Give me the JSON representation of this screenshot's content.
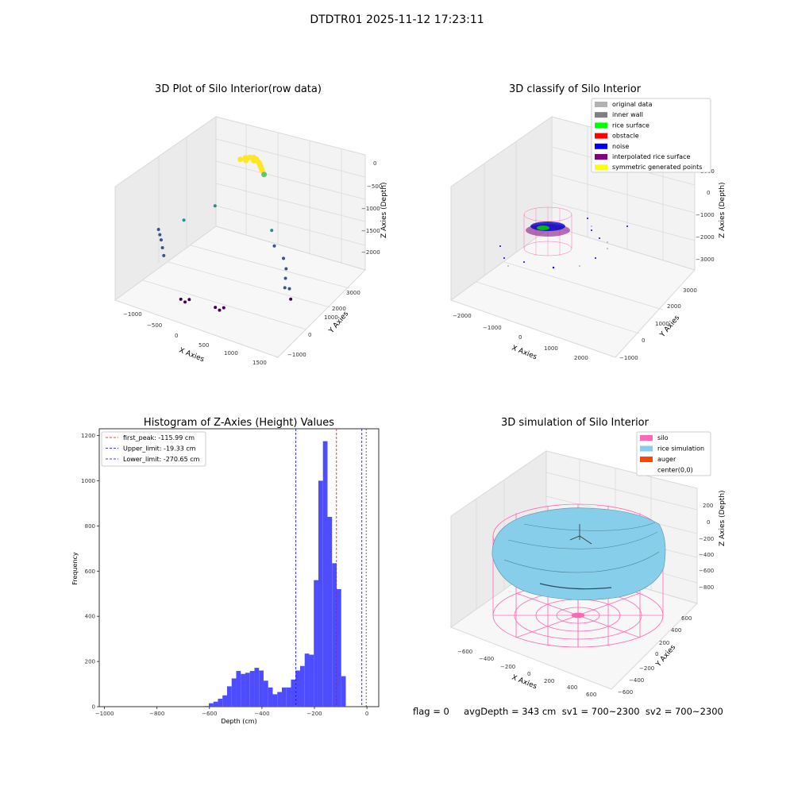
{
  "suptitle": "DTDTR01 2025-11-12 17:23:11",
  "status_line": "flag = 0     avgDepth = 343 cm  sv1 = 700~2300  sv2 = 700~2300",
  "chart_data": [
    {
      "type": "scatter",
      "title": "3D Plot of Silo Interior(row data)",
      "xlabel": "X Axies",
      "ylabel": "Y Axies",
      "zlabel": "Z Axies (Depth)",
      "xticks": [
        "−1000",
        "−500",
        "0",
        "500",
        "1000",
        "1500"
      ],
      "yticks": [
        "−1000",
        "0",
        "1000",
        "2000",
        "3000"
      ],
      "zticks": [
        "0",
        "−500",
        "−1000",
        "−1500",
        "−2000"
      ],
      "xlim": [
        -1000,
        1500
      ],
      "ylim": [
        -1000,
        3500
      ],
      "zlim": [
        -2300,
        0
      ],
      "colormap": [
        "#440154",
        "#3b528b",
        "#21918c",
        "#5ec962",
        "#fde725"
      ],
      "clusters": [
        {
          "label": "rice surface arc",
          "x": [
            -150,
            -100,
            -50,
            0,
            50,
            100,
            150,
            200,
            250,
            -80,
            20,
            120,
            180
          ],
          "y": [
            2600,
            2700,
            2750,
            2780,
            2760,
            2700,
            2620,
            2550,
            2480,
            2650,
            2720,
            2690,
            2580
          ],
          "z": [
            -400,
            -380,
            -370,
            -360,
            -370,
            -390,
            -420,
            -460,
            -500,
            -410,
            -400,
            -410,
            -450
          ]
        },
        {
          "label": "wall points",
          "x": [
            -900,
            -850,
            -800,
            -750,
            -700,
            -600,
            -300,
            600,
            700,
            900,
            1000,
            1050,
            1100,
            1200,
            1250
          ],
          "y": [
            900,
            800,
            700,
            600,
            500,
            1200,
            1800,
            1700,
            1500,
            1300,
            1100,
            900,
            700,
            600,
            500
          ],
          "z": [
            -1500,
            -1550,
            -1600,
            -1700,
            -1800,
            -1300,
            -1100,
            -1200,
            -1400,
            -1500,
            -1600,
            -1700,
            -1800,
            -1750,
            -1900
          ]
        },
        {
          "label": "bottom points",
          "x": [
            -200,
            -150,
            -100,
            300,
            350,
            400
          ],
          "y": [
            -300,
            -250,
            -200,
            -200,
            -150,
            -100
          ],
          "z": [
            -2200,
            -2250,
            -2200,
            -2200,
            -2250,
            -2200
          ]
        }
      ]
    },
    {
      "type": "scatter",
      "title": "3D classify of Silo Interior",
      "xlabel": "X Axies",
      "ylabel": "Y Axies",
      "zlabel": "Z Axies (Depth)",
      "xticks": [
        "−2000",
        "−1000",
        "0",
        "1000",
        "2000"
      ],
      "yticks": [
        "−1000",
        "0",
        "1000",
        "2000",
        "3000"
      ],
      "zticks": [
        "1000",
        "0",
        "−1000",
        "−2000",
        "−3000"
      ],
      "xlim": [
        -2500,
        2500
      ],
      "ylim": [
        -1000,
        3500
      ],
      "zlim": [
        -3300,
        1000
      ],
      "legend_position": "top-right",
      "legend": [
        {
          "label": "original data",
          "color": "#b3b3b3"
        },
        {
          "label": "inner wall",
          "color": "#808080"
        },
        {
          "label": "rice surface",
          "color": "#00ff00"
        },
        {
          "label": "obstacle",
          "color": "#ff0000"
        },
        {
          "label": "noise",
          "color": "#0000ff"
        },
        {
          "label": "interpolated rice surface",
          "color": "#800080"
        },
        {
          "label": "symmetric generated points",
          "color": "#ffff00"
        }
      ]
    },
    {
      "type": "bar",
      "title": "Histogram of Z-Axies (Height) Values",
      "xlabel": "Depth (cm)",
      "ylabel": "Frequency",
      "xlim": [
        -1020,
        45
      ],
      "ylim": [
        0,
        1230
      ],
      "xticks": [
        -1000,
        -800,
        -600,
        -400,
        -200,
        0
      ],
      "xtick_labels": [
        "−1000",
        "−800",
        "−600",
        "−400",
        "−200",
        "0"
      ],
      "yticks": [
        0,
        200,
        400,
        600,
        800,
        1000,
        1200
      ],
      "ytick_labels": [
        "0",
        "200",
        "400",
        "600",
        "800",
        "1000",
        "1200"
      ],
      "bar_color": "#4d4dff",
      "bins_from": -620,
      "bin_width": 17.4,
      "values": [
        3,
        15,
        22,
        35,
        50,
        90,
        125,
        158,
        145,
        150,
        158,
        172,
        160,
        115,
        85,
        55,
        65,
        85,
        85,
        120,
        160,
        180,
        235,
        230,
        560,
        1000,
        1175,
        840,
        635,
        520,
        135
      ],
      "legend_position": "top-left",
      "lines": [
        {
          "label": "first_peak: -115.99 cm",
          "x": -115.99,
          "color": "#ff0000"
        },
        {
          "label": "Upper_limit: -19.33 cm",
          "x": -19.33,
          "color": "#0000ff"
        },
        {
          "label": "Lower_limit: -270.65 cm",
          "x": -270.65,
          "color": "#0000ff"
        }
      ],
      "extra_line": {
        "x": -3,
        "color": "#000000"
      }
    },
    {
      "type": "area",
      "title": "3D simulation of Silo Interior",
      "xlabel": "X Axies",
      "ylabel": "Y Axies",
      "zlabel": "Z Axies (Depth)",
      "xticks": [
        "−600",
        "−400",
        "−200",
        "0",
        "200",
        "400",
        "600"
      ],
      "yticks": [
        "−600",
        "−400",
        "−200",
        "0",
        "200",
        "400",
        "600"
      ],
      "zticks": [
        "200",
        "0",
        "−200",
        "−400",
        "−600",
        "−800"
      ],
      "legend_position": "top-right",
      "legend": [
        {
          "label": "silo",
          "color": "#ff69b4"
        },
        {
          "label": "rice simulation",
          "color": "#87ceeb"
        },
        {
          "label": "auger",
          "color": "#ff4500"
        },
        {
          "label": "center(0,0)",
          "color": ""
        }
      ]
    }
  ]
}
